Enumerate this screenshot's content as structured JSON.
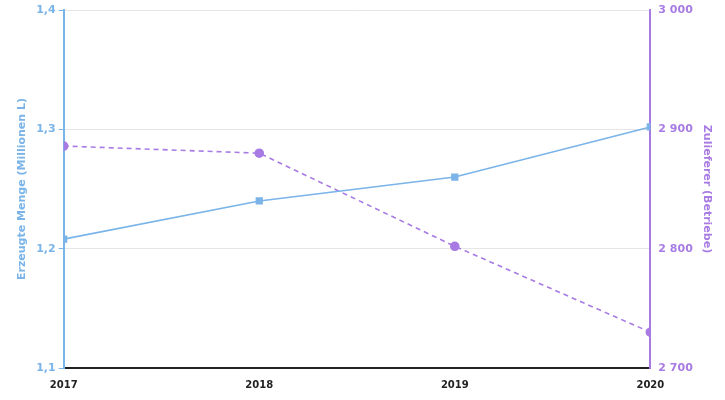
{
  "chart_data": {
    "type": "line",
    "categories": [
      "2017",
      "2018",
      "2019",
      "2020"
    ],
    "y_label": "Erzeugte Menge (Millionen L)",
    "y2_label": "Zulieferer (Betriebe)",
    "ylim": [
      1.1,
      1.4
    ],
    "yticks": [
      {
        "value": 1.1,
        "label": "1,1"
      },
      {
        "value": 1.2,
        "label": "1,2"
      },
      {
        "value": 1.3,
        "label": "1,3"
      },
      {
        "value": 1.4,
        "label": "1,4"
      }
    ],
    "y2lim": [
      2700,
      3000
    ],
    "y2ticks": [
      {
        "value": 2700,
        "label": "2 700"
      },
      {
        "value": 2800,
        "label": "2 800"
      },
      {
        "value": 2900,
        "label": "2 900"
      },
      {
        "value": 3000,
        "label": "3 000"
      }
    ],
    "grid": true,
    "series": [
      {
        "color": "#7ab4e8",
        "values": [
          1.208,
          1.24,
          1.26,
          1.302
        ],
        "marker": "square",
        "line_style": "solid"
      },
      {
        "color": "#a77be3",
        "values": [
          2886,
          2880,
          2802,
          2730
        ],
        "marker": "circle",
        "line_style": "dashed",
        "axis": "y2"
      }
    ]
  }
}
